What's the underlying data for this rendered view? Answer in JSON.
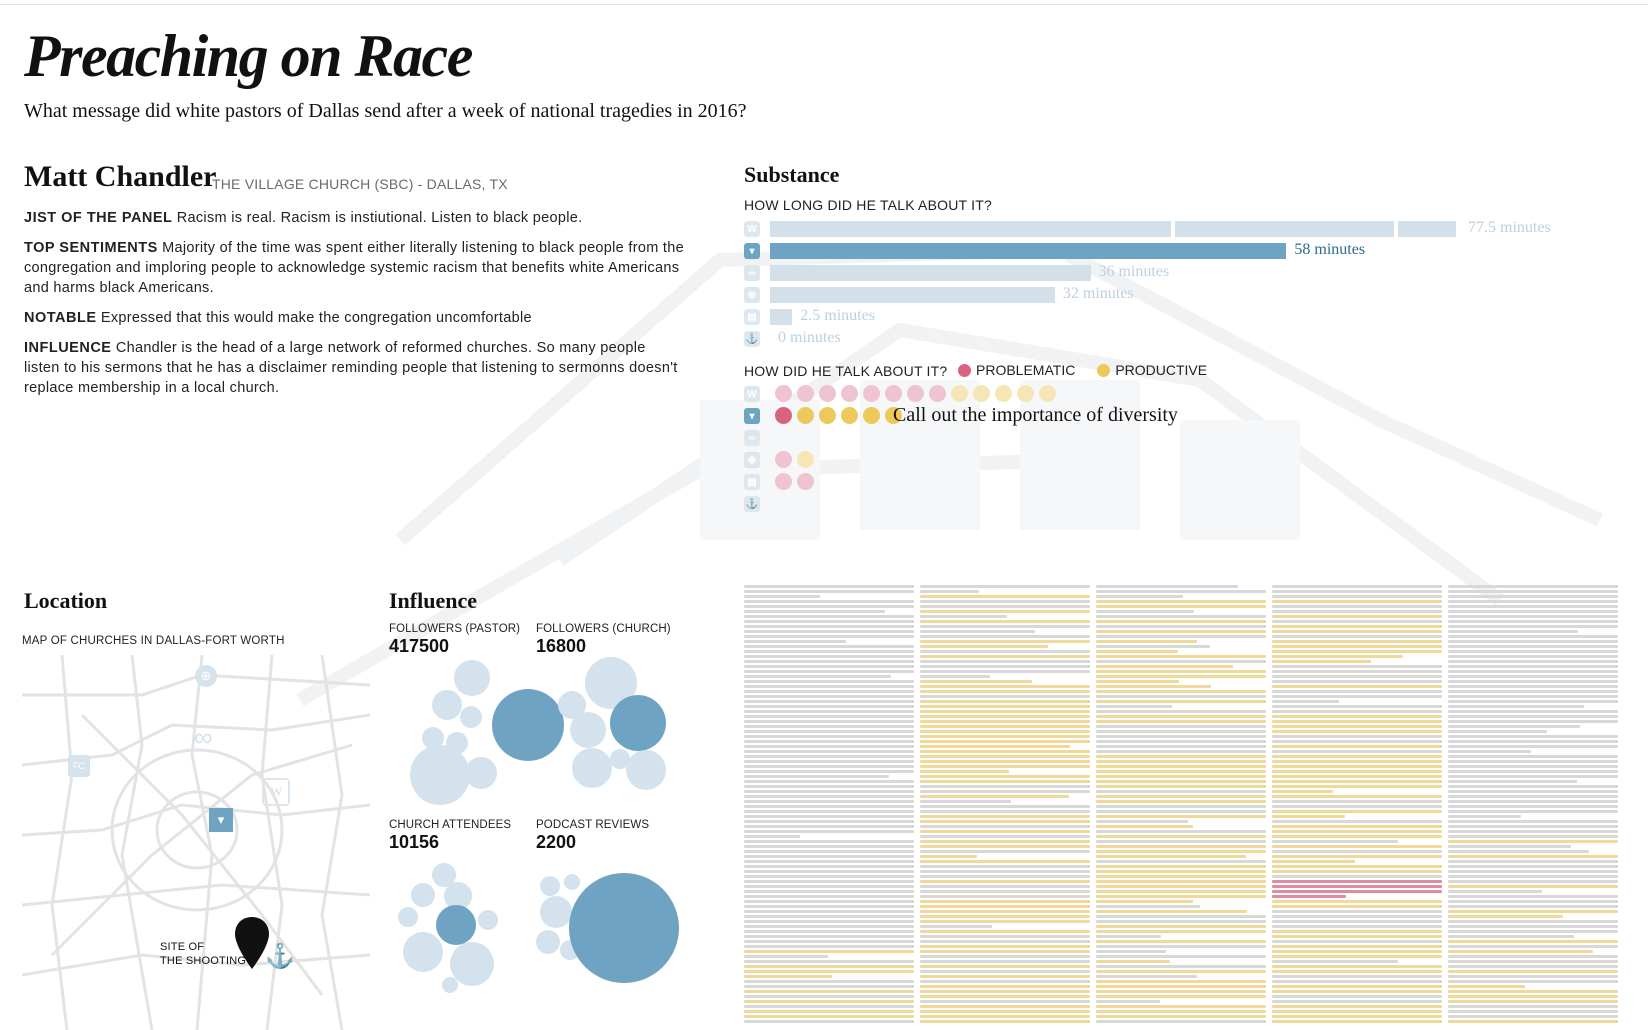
{
  "header": {
    "title": "Preaching on Race",
    "subtitle": "What message did white pastors of Dallas send after a week of national tragedies in 2016?"
  },
  "pastor": {
    "name": "Matt Chandler",
    "church": "THE VILLAGE CHURCH (SBC) - DALLAS, TX"
  },
  "notes": {
    "jist_label": "JIST OF THE PANEL",
    "jist_text": " Racism is real. Racism is instiutional. Listen to black people.",
    "sentiments_label": "TOP SENTIMENTS",
    "sentiments_text": " Majority of the time was spent either literally listening to black people from the congregation and imploring people to acknowledge systemic racism that benefits white Americans and harms black Americans.",
    "notable_label": "NOTABLE",
    "notable_text": " Expressed that this would make the congregation uncomfortable",
    "influence_label": "INFLUENCE",
    "influence_text": " Chandler is the head of a large network of reformed churches. So many people listen to his sermons that he has a disclaimer reminding people that listening to sermonns doesn't replace membership in a local church."
  },
  "substance": {
    "heading": "Substance",
    "how_long_label": "HOW LONG DID HE TALK ABOUT IT?",
    "how_label": "HOW DID HE TALK ABOUT IT?",
    "legend_problematic": "PROBLEMATIC",
    "legend_productive": "PRODUCTIVE",
    "callout": "Call out the importance of diversity",
    "colors": {
      "highlight_bar": "#6fa3c4",
      "dim_bar": "#d3e0ea",
      "problematic": "#d9637f",
      "productive": "#ecc95a",
      "problematic_dim": "#eec4d0",
      "productive_dim": "#f5e7b5"
    }
  },
  "chart_data": {
    "type": "bar",
    "categories": [
      "W",
      "Village",
      "Infinity",
      "Globe",
      "Building",
      "Anchor"
    ],
    "icons": [
      "w-logo-icon",
      "village-church-icon",
      "infinity-icon",
      "globe-icon",
      "building-icon",
      "anchor-icon"
    ],
    "values": [
      77.5,
      58,
      36,
      32,
      2.5,
      0
    ],
    "value_labels": [
      "77.5 minutes",
      "58 minutes",
      "36 minutes",
      "32 minutes",
      "2.5 minutes",
      "0 minutes"
    ],
    "highlight_index": 1,
    "segments_first": [
      45.5,
      25,
      7
    ],
    "xlim": [
      0,
      77.5
    ],
    "sentiment_dots": [
      {
        "problematic": 8,
        "productive": 5
      },
      {
        "problematic": 1,
        "productive": 5
      },
      {
        "problematic": 0,
        "productive": 0
      },
      {
        "problematic": 1,
        "productive": 1
      },
      {
        "problematic": 2,
        "productive": 0
      },
      {
        "problematic": 0,
        "productive": 0
      }
    ]
  },
  "location": {
    "heading": "Location",
    "map_label": "MAP OF CHURCHES IN DALLAS-FORT WORTH",
    "shooting_label_line1": "SITE OF",
    "shooting_label_line2": "THE SHOOTING",
    "church_badge_text": "FC"
  },
  "influence": {
    "heading": "Influence",
    "stats": [
      {
        "label": "FOLLOWERS (PASTOR)",
        "value": "417500"
      },
      {
        "label": "FOLLOWERS (CHURCH)",
        "value": "16800"
      },
      {
        "label": "CHURCH ATTENDEES",
        "value": "10156"
      },
      {
        "label": "PODCAST REVIEWS",
        "value": "2200"
      }
    ]
  }
}
